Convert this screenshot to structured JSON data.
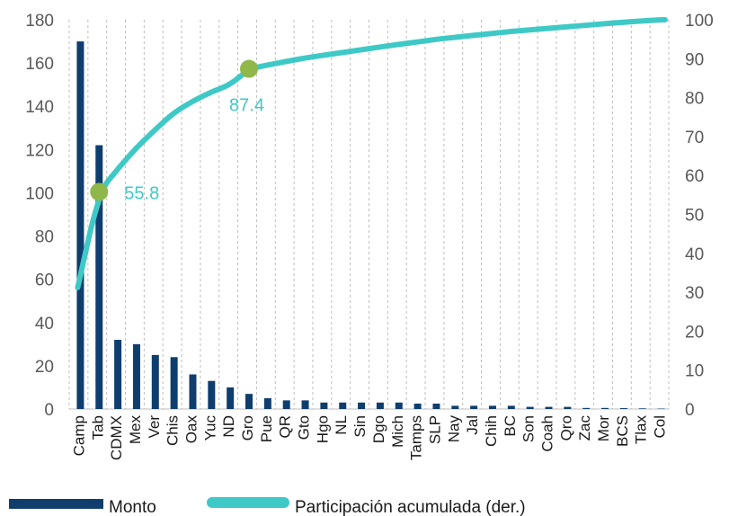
{
  "chart_data": {
    "type": "bar",
    "categories": [
      "Camp",
      "Tab",
      "CDMX",
      "Mex",
      "Ver",
      "Chis",
      "Oax",
      "Yuc",
      "ND",
      "Gro",
      "Pue",
      "QR",
      "Gto",
      "Hgo",
      "NL",
      "Sin",
      "Dgo",
      "Mich",
      "Tamps",
      "SLP",
      "Nay",
      "Jal",
      "Chih",
      "BC",
      "Son",
      "Coah",
      "Qro",
      "Zac",
      "Mor",
      "BCS",
      "Tlax",
      "Col"
    ],
    "series": [
      {
        "name": "Monto",
        "type": "bar",
        "axis": "left",
        "color": "#0f3e6e",
        "values": [
          170,
          122,
          32,
          30,
          25,
          24,
          16,
          13,
          10,
          7,
          5,
          4,
          4,
          3,
          3,
          3,
          3,
          3,
          2.5,
          2.5,
          1.5,
          1.5,
          1.5,
          1.5,
          1,
          1,
          1,
          0.5,
          0.5,
          0.4,
          0.3,
          0.2
        ]
      },
      {
        "name": "Participación acumulada (der.)",
        "type": "line",
        "axis": "right",
        "color": "#3fc9c6",
        "values": [
          31.2,
          55.8,
          61.7,
          67.2,
          71.8,
          76.2,
          79.1,
          81.5,
          83.3,
          87.4,
          88.4,
          89.3,
          90.2,
          90.9,
          91.6,
          92.3,
          93.0,
          93.7,
          94.3,
          95.0,
          95.5,
          96.0,
          96.5,
          97.0,
          97.4,
          97.8,
          98.2,
          98.6,
          99.0,
          99.4,
          99.7,
          100
        ]
      }
    ],
    "annotations": [
      {
        "category": "Tab",
        "value": 55.8,
        "label": "55.8",
        "marker_color": "#8fb74a"
      },
      {
        "category": "Gro",
        "value": 87.4,
        "label": "87.4",
        "marker_color": "#8fb74a"
      }
    ],
    "y_left": {
      "min": 0,
      "max": 180,
      "ticks": [
        0,
        20,
        40,
        60,
        80,
        100,
        120,
        140,
        160,
        180
      ]
    },
    "y_right": {
      "min": 0,
      "max": 100,
      "ticks": [
        0,
        10,
        20,
        30,
        40,
        50,
        60,
        70,
        80,
        90,
        100
      ]
    },
    "grid": "vertical-dashed",
    "legend_position": "bottom-left"
  }
}
